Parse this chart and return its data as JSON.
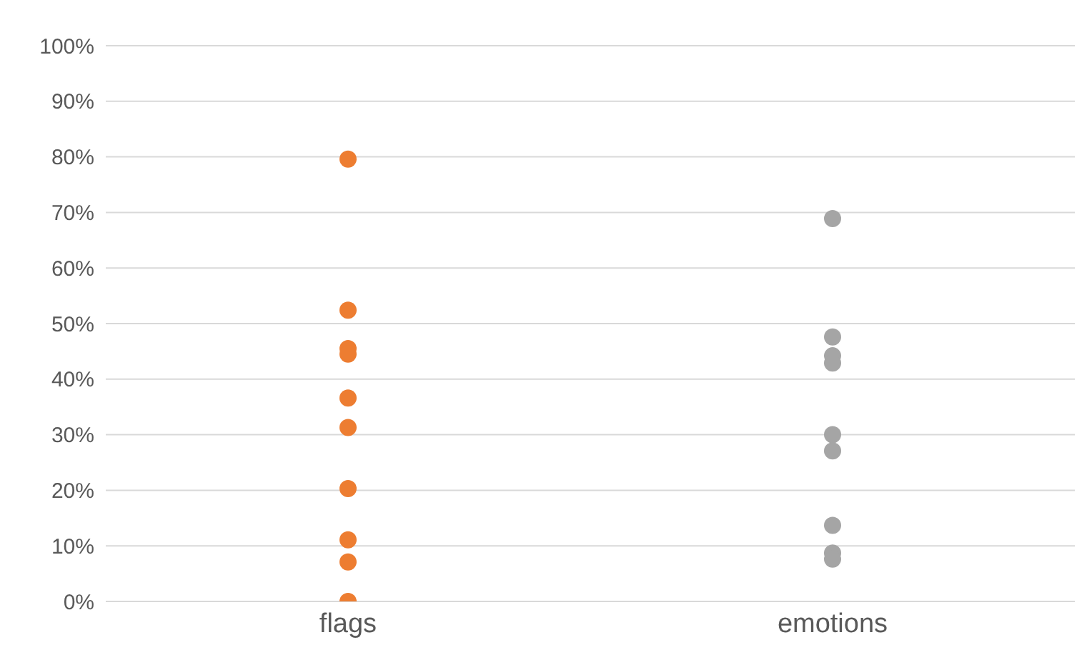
{
  "chart_data": {
    "type": "scatter",
    "categories": [
      "flags",
      "emotions"
    ],
    "series": [
      {
        "color": "#ed7d31",
        "x": [
          "flags",
          "flags",
          "flags",
          "flags",
          "flags",
          "flags",
          "flags",
          "flags",
          "flags",
          "flags"
        ],
        "values": [
          79.6,
          52.4,
          45.5,
          44.5,
          36.6,
          31.3,
          20.3,
          11.1,
          7.1,
          0
        ]
      },
      {
        "color": "#a5a5a5",
        "x": [
          "emotions",
          "emotions",
          "emotions",
          "emotions",
          "emotions",
          "emotions",
          "emotions",
          "emotions",
          "emotions"
        ],
        "values": [
          68.9,
          47.6,
          44.2,
          42.9,
          30,
          27.1,
          13.7,
          8.7,
          7.6
        ]
      }
    ],
    "ylim": [
      0,
      100
    ],
    "yticks": [
      {
        "value": 0,
        "label": "0%"
      },
      {
        "value": 10,
        "label": "10%"
      },
      {
        "value": 20,
        "label": "20%"
      },
      {
        "value": 30,
        "label": "30%"
      },
      {
        "value": 40,
        "label": "40%"
      },
      {
        "value": 50,
        "label": "50%"
      },
      {
        "value": 60,
        "label": "60%"
      },
      {
        "value": 70,
        "label": "70%"
      },
      {
        "value": 80,
        "label": "80%"
      },
      {
        "value": 90,
        "label": "90%"
      },
      {
        "value": 100,
        "label": "100%"
      }
    ],
    "grid": "y",
    "marker": "circle"
  }
}
